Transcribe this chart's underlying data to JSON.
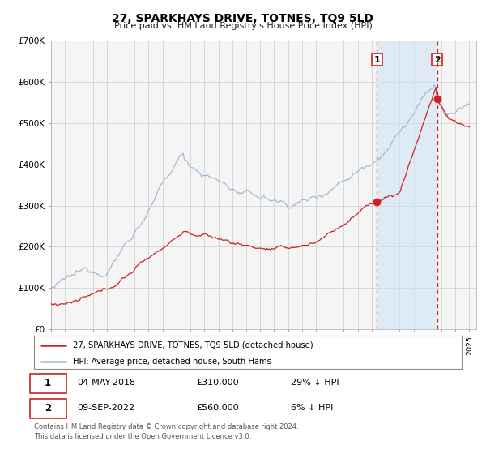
{
  "title": "27, SPARKHAYS DRIVE, TOTNES, TQ9 5LD",
  "subtitle": "Price paid vs. HM Land Registry's House Price Index (HPI)",
  "legend_entry1": "27, SPARKHAYS DRIVE, TOTNES, TQ9 5LD (detached house)",
  "legend_entry2": "HPI: Average price, detached house, South Hams",
  "sale1_date": "04-MAY-2018",
  "sale1_price": "£310,000",
  "sale1_hpi": "29% ↓ HPI",
  "sale1_year": 2018.37,
  "sale1_value": 310000,
  "sale2_date": "09-SEP-2022",
  "sale2_price": "£560,000",
  "sale2_hpi": "6% ↓ HPI",
  "sale2_year": 2022.69,
  "sale2_value": 560000,
  "hpi_color": "#a0bcd8",
  "hpi_fill_color": "#d0e4f4",
  "price_color": "#cc2222",
  "vline_color": "#cc2222",
  "marker_color": "#cc2222",
  "box_color": "#cc2222",
  "grid_color": "#cccccc",
  "background_color": "#f5f5f5",
  "footer_text": "Contains HM Land Registry data © Crown copyright and database right 2024.\nThis data is licensed under the Open Government Licence v3.0.",
  "ylim": [
    0,
    700000
  ],
  "xlim_start": 1995.0,
  "xlim_end": 2025.5
}
